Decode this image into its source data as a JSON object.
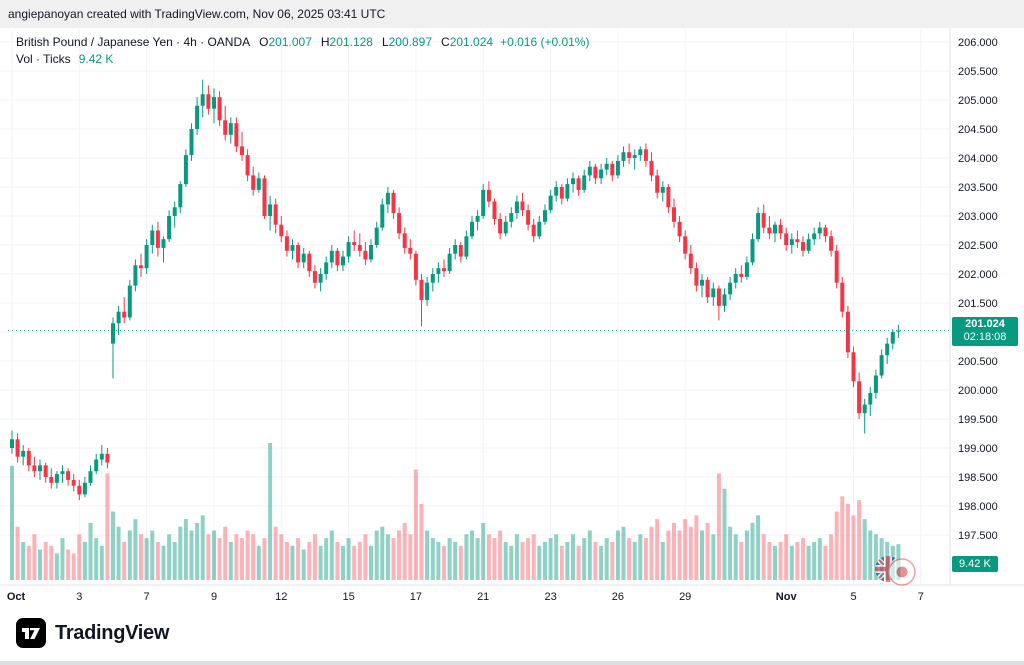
{
  "attribution": "angiepanoyan created with TradingView.com, Nov 06, 2025 03:41 UTC",
  "legend": {
    "title": "British Pound / Japanese Yen · 4h · OANDA",
    "o_label": "O",
    "o_value": "201.007",
    "h_label": "H",
    "h_value": "201.128",
    "l_label": "L",
    "l_value": "200.897",
    "c_label": "C",
    "c_value": "201.024",
    "change": "+0.016 (+0.01%)",
    "volume_label": "Vol · Ticks",
    "volume_value": "9.42 K"
  },
  "price_label": {
    "price": "201.024",
    "countdown": "02:18:08"
  },
  "volume_badge": "9.42 K",
  "footer": {
    "brand": "TradingView"
  },
  "colors": {
    "up": "#089981",
    "down": "#f23645",
    "vol_up": "rgba(8,153,129,0.45)",
    "vol_down": "rgba(242,54,69,0.38)",
    "grid": "#f0f3fa",
    "axis_line": "#e0e3eb",
    "axis_text": "#131722",
    "badge": "#089981"
  },
  "price_axis": {
    "labels": [
      "206.000",
      "205.500",
      "205.000",
      "204.500",
      "204.000",
      "203.500",
      "203.000",
      "202.500",
      "202.000",
      "201.500",
      "201.000",
      "200.500",
      "200.000",
      "199.500",
      "199.000",
      "198.500",
      "198.000",
      "197.500"
    ]
  },
  "time_axis": {
    "labels": [
      {
        "t": "Oct",
        "i": 0,
        "m": 1
      },
      {
        "t": "3",
        "i": 12
      },
      {
        "t": "7",
        "i": 24
      },
      {
        "t": "9",
        "i": 36
      },
      {
        "t": "12",
        "i": 48
      },
      {
        "t": "15",
        "i": 60
      },
      {
        "t": "17",
        "i": 72
      },
      {
        "t": "21",
        "i": 84
      },
      {
        "t": "23",
        "i": 96
      },
      {
        "t": "26",
        "i": 108
      },
      {
        "t": "29",
        "i": 120
      },
      {
        "t": "Nov",
        "i": 138,
        "m": 1
      },
      {
        "t": "5",
        "i": 150
      },
      {
        "t": "7",
        "i": 162
      }
    ]
  },
  "chart_data": {
    "type": "candlestick",
    "symbol": "GBP/JPY",
    "title": "British Pound / Japanese Yen",
    "interval": "4h",
    "exchange": "OANDA",
    "price_range": [
      197.5,
      206.0
    ],
    "current_price": 201.024,
    "grid": true,
    "fields": [
      "open",
      "high",
      "low",
      "close",
      "volume_k_ticks"
    ],
    "candles": [
      [
        199.0,
        199.3,
        198.9,
        199.15,
        30
      ],
      [
        199.15,
        199.25,
        198.75,
        198.85,
        14
      ],
      [
        198.85,
        199.05,
        198.7,
        198.95,
        10
      ],
      [
        198.95,
        199.0,
        198.6,
        198.7,
        9
      ],
      [
        198.7,
        198.85,
        198.5,
        198.6,
        12
      ],
      [
        198.6,
        198.8,
        198.45,
        198.7,
        8
      ],
      [
        198.7,
        198.75,
        198.4,
        198.5,
        10
      ],
      [
        198.5,
        198.65,
        198.3,
        198.4,
        9
      ],
      [
        198.4,
        198.6,
        198.3,
        198.55,
        7
      ],
      [
        198.55,
        198.7,
        198.4,
        198.6,
        11
      ],
      [
        198.6,
        198.65,
        198.35,
        198.45,
        8
      ],
      [
        198.45,
        198.55,
        198.25,
        198.35,
        7
      ],
      [
        198.35,
        198.45,
        198.1,
        198.2,
        12
      ],
      [
        198.2,
        198.5,
        198.15,
        198.4,
        10
      ],
      [
        198.4,
        198.7,
        198.35,
        198.6,
        15
      ],
      [
        198.6,
        198.9,
        198.55,
        198.8,
        11
      ],
      [
        198.8,
        199.05,
        198.7,
        198.9,
        9
      ],
      [
        198.9,
        199.0,
        198.65,
        198.75,
        28
      ],
      [
        200.8,
        201.25,
        200.2,
        201.15,
        18
      ],
      [
        201.15,
        201.45,
        200.95,
        201.35,
        14
      ],
      [
        201.35,
        201.6,
        201.15,
        201.25,
        10
      ],
      [
        201.25,
        201.9,
        201.2,
        201.8,
        13
      ],
      [
        201.8,
        202.25,
        201.7,
        202.15,
        16
      ],
      [
        202.15,
        202.35,
        201.95,
        202.1,
        12
      ],
      [
        202.1,
        202.6,
        202.0,
        202.5,
        11
      ],
      [
        202.5,
        202.85,
        202.35,
        202.75,
        13
      ],
      [
        202.75,
        202.9,
        202.3,
        202.45,
        10
      ],
      [
        202.45,
        202.65,
        202.2,
        202.6,
        9
      ],
      [
        202.6,
        203.1,
        202.55,
        203.0,
        12
      ],
      [
        203.0,
        203.25,
        202.8,
        203.15,
        10
      ],
      [
        203.15,
        203.6,
        203.05,
        203.55,
        14
      ],
      [
        203.55,
        204.15,
        203.5,
        204.05,
        16
      ],
      [
        204.05,
        204.6,
        203.95,
        204.5,
        13
      ],
      [
        204.5,
        205.05,
        204.4,
        204.9,
        15
      ],
      [
        204.9,
        205.35,
        204.7,
        205.1,
        17
      ],
      [
        205.1,
        205.25,
        204.75,
        204.85,
        12
      ],
      [
        204.85,
        205.2,
        204.6,
        205.05,
        13
      ],
      [
        205.05,
        205.15,
        204.55,
        204.65,
        11
      ],
      [
        204.65,
        204.9,
        204.3,
        204.4,
        14
      ],
      [
        204.4,
        204.7,
        204.25,
        204.6,
        10
      ],
      [
        204.6,
        204.7,
        204.1,
        204.2,
        12
      ],
      [
        204.2,
        204.45,
        203.95,
        204.05,
        11
      ],
      [
        204.05,
        204.15,
        203.6,
        203.7,
        13
      ],
      [
        203.7,
        203.85,
        203.35,
        203.45,
        12
      ],
      [
        203.45,
        203.75,
        203.4,
        203.65,
        9
      ],
      [
        203.65,
        203.7,
        202.95,
        203.0,
        11
      ],
      [
        203.0,
        203.35,
        202.75,
        203.2,
        36
      ],
      [
        203.2,
        203.3,
        202.7,
        202.85,
        14
      ],
      [
        202.85,
        203.0,
        202.55,
        202.65,
        12
      ],
      [
        202.65,
        202.75,
        202.3,
        202.4,
        10
      ],
      [
        202.4,
        202.6,
        202.25,
        202.5,
        9
      ],
      [
        202.5,
        202.55,
        202.1,
        202.2,
        11
      ],
      [
        202.2,
        202.45,
        202.1,
        202.35,
        8
      ],
      [
        202.35,
        202.4,
        201.95,
        202.05,
        10
      ],
      [
        202.05,
        202.15,
        201.75,
        201.85,
        12
      ],
      [
        201.85,
        202.1,
        201.7,
        202.0,
        9
      ],
      [
        202.0,
        202.3,
        201.9,
        202.2,
        11
      ],
      [
        202.2,
        202.5,
        202.1,
        202.4,
        13
      ],
      [
        202.4,
        202.45,
        202.05,
        202.15,
        10
      ],
      [
        202.15,
        202.4,
        202.05,
        202.3,
        9
      ],
      [
        202.3,
        202.65,
        202.2,
        202.55,
        11
      ],
      [
        202.55,
        202.75,
        202.4,
        202.5,
        9
      ],
      [
        202.5,
        202.7,
        202.3,
        202.4,
        10
      ],
      [
        202.4,
        202.55,
        202.15,
        202.25,
        12
      ],
      [
        202.25,
        202.6,
        202.2,
        202.5,
        9
      ],
      [
        202.5,
        202.9,
        202.45,
        202.8,
        13
      ],
      [
        202.8,
        203.3,
        202.75,
        203.2,
        14
      ],
      [
        203.2,
        203.5,
        203.05,
        203.4,
        12
      ],
      [
        203.4,
        203.45,
        202.95,
        203.05,
        11
      ],
      [
        203.05,
        203.15,
        202.6,
        202.7,
        13
      ],
      [
        202.7,
        202.8,
        202.35,
        202.45,
        15
      ],
      [
        202.45,
        202.6,
        202.25,
        202.35,
        12
      ],
      [
        202.35,
        202.4,
        201.8,
        201.9,
        29
      ],
      [
        201.9,
        202.0,
        201.1,
        201.55,
        20
      ],
      [
        201.55,
        201.95,
        201.45,
        201.85,
        13
      ],
      [
        201.85,
        202.1,
        201.7,
        202.0,
        11
      ],
      [
        202.0,
        202.2,
        201.85,
        202.1,
        10
      ],
      [
        202.1,
        202.25,
        201.95,
        202.05,
        9
      ],
      [
        202.05,
        202.45,
        202.0,
        202.35,
        11
      ],
      [
        202.35,
        202.6,
        202.25,
        202.5,
        10
      ],
      [
        202.5,
        202.55,
        202.2,
        202.3,
        9
      ],
      [
        202.3,
        202.75,
        202.25,
        202.65,
        12
      ],
      [
        202.65,
        203.0,
        202.6,
        202.9,
        13
      ],
      [
        202.9,
        203.1,
        202.75,
        203.0,
        11
      ],
      [
        203.0,
        203.55,
        202.95,
        203.45,
        15
      ],
      [
        203.45,
        203.6,
        203.15,
        203.25,
        12
      ],
      [
        203.25,
        203.3,
        202.85,
        202.95,
        11
      ],
      [
        202.95,
        203.05,
        202.6,
        202.7,
        13
      ],
      [
        202.7,
        203.0,
        202.65,
        202.9,
        10
      ],
      [
        202.9,
        203.15,
        202.8,
        203.05,
        9
      ],
      [
        203.05,
        203.35,
        202.95,
        203.25,
        12
      ],
      [
        203.25,
        203.4,
        203.0,
        203.1,
        10
      ],
      [
        203.1,
        203.2,
        202.75,
        202.85,
        11
      ],
      [
        202.85,
        202.95,
        202.55,
        202.65,
        12
      ],
      [
        202.65,
        203.0,
        202.6,
        202.9,
        9
      ],
      [
        202.9,
        203.2,
        202.85,
        203.1,
        10
      ],
      [
        203.1,
        203.45,
        203.05,
        203.35,
        11
      ],
      [
        203.35,
        203.6,
        203.25,
        203.5,
        12
      ],
      [
        203.5,
        203.55,
        203.2,
        203.3,
        9
      ],
      [
        203.3,
        203.65,
        203.25,
        203.55,
        10
      ],
      [
        203.55,
        203.75,
        203.4,
        203.65,
        12
      ],
      [
        203.65,
        203.7,
        203.35,
        203.45,
        9
      ],
      [
        203.45,
        203.8,
        203.4,
        203.7,
        11
      ],
      [
        203.7,
        203.95,
        203.6,
        203.85,
        13
      ],
      [
        203.85,
        203.9,
        203.55,
        203.65,
        10
      ],
      [
        203.65,
        203.9,
        203.55,
        203.8,
        9
      ],
      [
        203.8,
        204.0,
        203.7,
        203.9,
        11
      ],
      [
        203.9,
        203.95,
        203.6,
        203.7,
        10
      ],
      [
        203.7,
        204.05,
        203.65,
        203.95,
        13
      ],
      [
        203.95,
        204.2,
        203.85,
        204.1,
        14
      ],
      [
        204.1,
        204.25,
        203.9,
        204.0,
        11
      ],
      [
        204.0,
        204.15,
        203.8,
        204.05,
        10
      ],
      [
        204.05,
        204.2,
        203.95,
        204.15,
        12
      ],
      [
        204.15,
        204.25,
        203.85,
        203.95,
        11
      ],
      [
        203.95,
        204.1,
        203.6,
        203.7,
        14
      ],
      [
        203.7,
        203.8,
        203.3,
        203.4,
        16
      ],
      [
        203.4,
        203.6,
        203.25,
        203.5,
        10
      ],
      [
        203.5,
        203.55,
        203.05,
        203.15,
        13
      ],
      [
        203.15,
        203.3,
        202.8,
        202.9,
        15
      ],
      [
        202.9,
        203.0,
        202.55,
        202.65,
        13
      ],
      [
        202.65,
        202.75,
        202.25,
        202.35,
        16
      ],
      [
        202.35,
        202.5,
        202.0,
        202.1,
        14
      ],
      [
        202.1,
        202.2,
        201.7,
        201.8,
        17
      ],
      [
        201.8,
        202.0,
        201.6,
        201.9,
        13
      ],
      [
        201.9,
        201.95,
        201.5,
        201.6,
        15
      ],
      [
        201.6,
        201.85,
        201.45,
        201.75,
        12
      ],
      [
        201.75,
        201.8,
        201.2,
        201.45,
        28
      ],
      [
        201.45,
        201.75,
        201.35,
        201.65,
        24
      ],
      [
        201.65,
        201.95,
        201.55,
        201.85,
        14
      ],
      [
        201.85,
        202.1,
        201.75,
        202.0,
        12
      ],
      [
        202.0,
        202.15,
        201.85,
        201.95,
        10
      ],
      [
        201.95,
        202.3,
        201.9,
        202.2,
        13
      ],
      [
        202.2,
        202.7,
        202.15,
        202.6,
        15
      ],
      [
        202.6,
        203.15,
        202.55,
        203.05,
        17
      ],
      [
        203.05,
        203.2,
        202.7,
        202.8,
        12
      ],
      [
        202.8,
        203.0,
        202.6,
        202.7,
        10
      ],
      [
        202.7,
        202.9,
        202.55,
        202.85,
        9
      ],
      [
        202.85,
        202.95,
        202.6,
        202.7,
        10
      ],
      [
        202.7,
        202.8,
        202.4,
        202.5,
        12
      ],
      [
        202.5,
        202.7,
        202.35,
        202.6,
        9
      ],
      [
        202.6,
        202.75,
        202.45,
        202.55,
        10
      ],
      [
        202.55,
        202.65,
        202.3,
        202.4,
        11
      ],
      [
        202.4,
        202.7,
        202.35,
        202.6,
        9
      ],
      [
        202.6,
        202.8,
        202.5,
        202.7,
        10
      ],
      [
        202.7,
        202.9,
        202.6,
        202.8,
        11
      ],
      [
        202.8,
        202.85,
        202.55,
        202.65,
        9
      ],
      [
        202.65,
        202.75,
        202.3,
        202.4,
        12
      ],
      [
        202.4,
        202.5,
        201.75,
        201.85,
        18
      ],
      [
        201.85,
        201.95,
        201.25,
        201.35,
        22
      ],
      [
        201.35,
        201.45,
        200.55,
        200.65,
        20
      ],
      [
        200.65,
        200.75,
        200.05,
        200.15,
        17
      ],
      [
        200.15,
        200.3,
        199.5,
        199.6,
        21
      ],
      [
        199.6,
        199.85,
        199.25,
        199.75,
        16
      ],
      [
        199.75,
        200.05,
        199.55,
        199.95,
        13
      ],
      [
        199.95,
        200.35,
        199.85,
        200.25,
        12
      ],
      [
        200.25,
        200.7,
        200.2,
        200.6,
        11
      ],
      [
        200.6,
        200.9,
        200.45,
        200.8,
        10
      ],
      [
        200.8,
        201.05,
        200.7,
        201.0,
        9
      ],
      [
        201.007,
        201.128,
        200.897,
        201.024,
        9.42
      ]
    ]
  }
}
